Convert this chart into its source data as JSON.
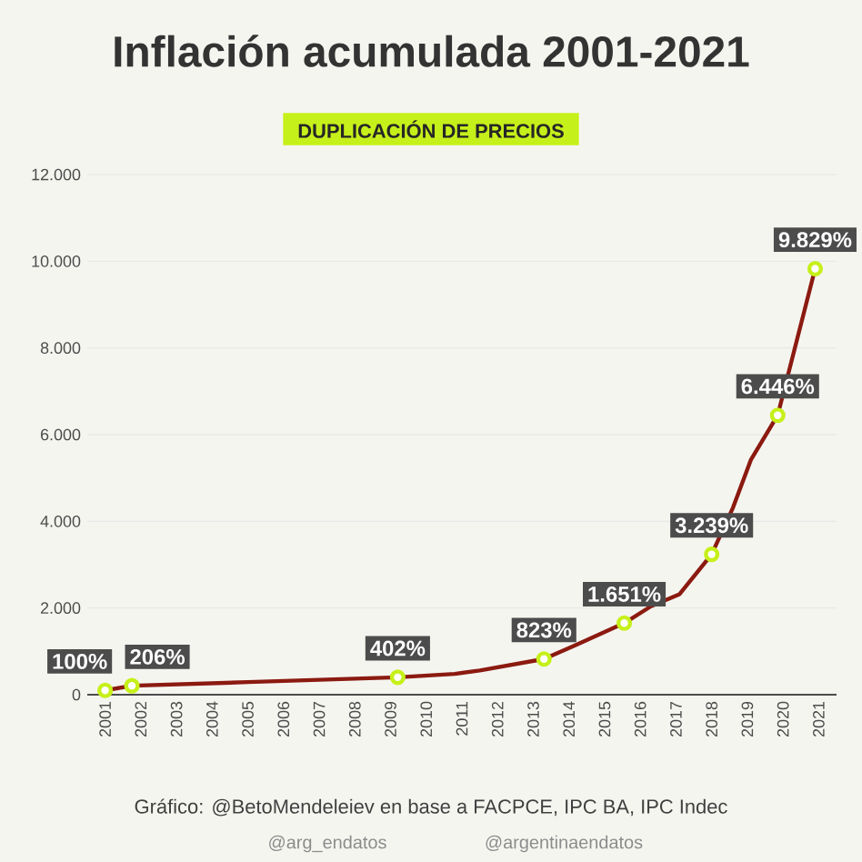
{
  "chart_data": {
    "type": "line",
    "title": "Inflación acumulada 2001-2021",
    "subtitle": "DUPLICACIÓN DE PRECIOS",
    "xlim": [
      2000.5,
      2021.5
    ],
    "xticks": [
      2001,
      2002,
      2003,
      2004,
      2005,
      2006,
      2007,
      2008,
      2009,
      2010,
      2011,
      2012,
      2013,
      2014,
      2015,
      2016,
      2017,
      2018,
      2019,
      2020,
      2021
    ],
    "ylim": [
      0,
      12000
    ],
    "yticks": [
      {
        "value": 0,
        "label": "0"
      },
      {
        "value": 2000,
        "label": "2.000"
      },
      {
        "value": 4000,
        "label": "4.000"
      },
      {
        "value": 6000,
        "label": "6.000"
      },
      {
        "value": 8000,
        "label": "8.000"
      },
      {
        "value": 10000,
        "label": "10.000"
      },
      {
        "value": 12000,
        "label": "12.000"
      }
    ],
    "grid": "y",
    "series": [
      {
        "color": "#8b1a10",
        "marker": "none",
        "x": [
          2001.0,
          2001.75,
          2005.0,
          2009.2,
          2010.8,
          2011.5,
          2013.3,
          2014.2,
          2015.55,
          2016.3,
          2017.1,
          2018.0,
          2018.6,
          2019.1,
          2019.85,
          2020.9
        ],
        "values": [
          100,
          206,
          290,
          402,
          480,
          560,
          823,
          1150,
          1651,
          2040,
          2320,
          3239,
          4320,
          5420,
          6446,
          9829
        ]
      },
      {
        "type": "scatter",
        "color": "#c6f01a",
        "marker": "circle",
        "x": [
          2001.0,
          2001.75,
          2009.2,
          2013.3,
          2015.55,
          2018.0,
          2019.85,
          2020.9
        ],
        "values": [
          100,
          206,
          402,
          823,
          1651,
          3239,
          6446,
          9829
        ],
        "value_labels": [
          "100%",
          "206%",
          "402%",
          "823%",
          "1.651%",
          "3.239%",
          "6.446%",
          "9.829%"
        ]
      }
    ],
    "annotations": [
      "Gráfico: @BetoMendeleiev en base a FACPCE, IPC BA, IPC Indec",
      "@arg_endatos",
      "@argentinaendatos"
    ]
  }
}
